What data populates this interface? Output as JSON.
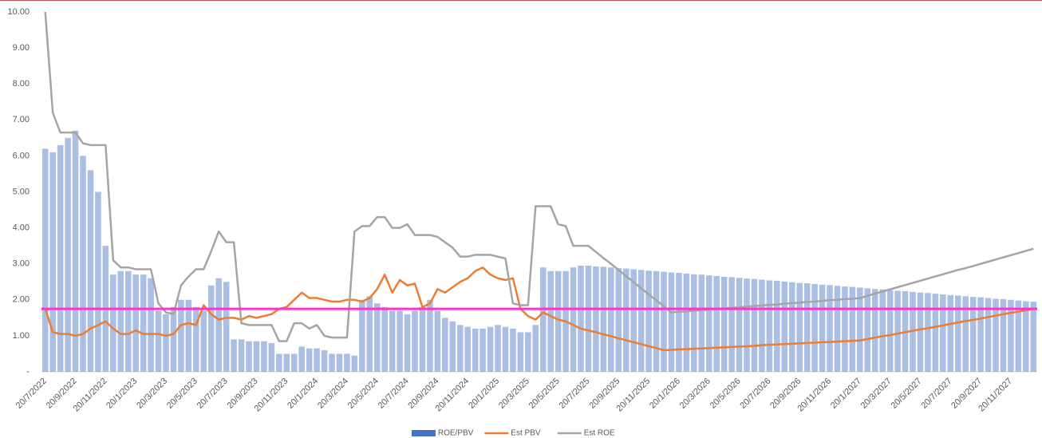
{
  "chart_data": {
    "type": "bar-line",
    "categories": [
      "20/7/2022",
      null,
      null,
      null,
      "20/9/2022",
      null,
      null,
      null,
      "20/11/2022",
      null,
      null,
      null,
      "20/1/2023",
      null,
      null,
      null,
      "20/3/2023",
      null,
      null,
      null,
      "20/5/2023",
      null,
      null,
      null,
      "20/7/2023",
      null,
      null,
      null,
      "20/9/2023",
      null,
      null,
      null,
      "20/11/2023",
      null,
      null,
      null,
      "20/1/2024",
      null,
      null,
      null,
      "20/3/2024",
      null,
      null,
      null,
      "20/5/2024",
      null,
      null,
      null,
      "20/7/2024",
      null,
      null,
      null,
      "20/9/2024",
      null,
      null,
      null,
      "20/11/2024",
      null,
      null,
      null,
      "20/1/2025",
      null,
      null,
      null,
      "20/3/2025",
      null,
      null,
      null,
      "20/5/2025",
      null,
      null,
      null,
      "20/7/2025",
      null,
      null,
      null,
      "20/9/2025",
      null,
      null,
      null,
      "20/11/2025",
      null,
      null,
      null,
      "20/1/2026",
      null,
      null,
      null,
      "20/3/2026",
      null,
      null,
      null,
      "20/5/2026",
      null,
      null,
      null,
      "20/7/2026",
      null,
      null,
      null,
      "20/9/2026",
      null,
      null,
      null,
      "20/11/2026",
      null,
      null,
      null,
      "20/1/2027",
      null,
      null,
      null,
      "20/3/2027",
      null,
      null,
      null,
      "20/5/2027",
      null,
      null,
      null,
      "20/7/2027",
      null,
      null,
      null,
      "20/9/2027",
      null,
      null,
      null,
      "20/11/2027",
      null,
      null,
      null
    ],
    "series": [
      {
        "name": "ROE/PBV",
        "kind": "bar",
        "color": "#4472c4",
        "values": [
          6.2,
          6.1,
          6.3,
          6.5,
          6.7,
          6.0,
          5.6,
          5.0,
          3.5,
          2.7,
          2.8,
          2.8,
          2.7,
          2.7,
          2.6,
          1.7,
          1.6,
          1.8,
          2.0,
          2.0,
          1.8,
          1.7,
          2.4,
          2.6,
          2.5,
          0.9,
          0.9,
          0.85,
          0.85,
          0.85,
          0.8,
          0.5,
          0.5,
          0.5,
          0.7,
          0.65,
          0.65,
          0.6,
          0.5,
          0.5,
          0.5,
          0.45,
          2.0,
          2.1,
          1.9,
          1.8,
          1.7,
          1.7,
          1.6,
          1.7,
          1.8,
          2.0,
          1.7,
          1.5,
          1.4,
          1.3,
          1.25,
          1.2,
          1.2,
          1.25,
          1.3,
          1.25,
          1.2,
          1.1,
          1.1,
          1.3,
          2.9,
          2.8,
          2.8,
          2.8,
          2.9,
          2.95,
          2.95,
          2.93,
          2.92,
          2.9,
          2.88,
          2.87,
          2.85,
          2.83,
          2.81,
          2.8,
          2.78,
          2.76,
          2.75,
          2.73,
          2.71,
          2.7,
          2.68,
          2.66,
          2.64,
          2.63,
          2.61,
          2.59,
          2.58,
          2.56,
          2.54,
          2.53,
          2.51,
          2.49,
          2.47,
          2.46,
          2.44,
          2.42,
          2.41,
          2.39,
          2.37,
          2.36,
          2.34,
          2.32,
          2.3,
          2.29,
          2.27,
          2.25,
          2.24,
          2.22,
          2.2,
          2.19,
          2.17,
          2.15,
          2.13,
          2.12,
          2.1,
          2.08,
          2.07,
          2.05,
          2.03,
          2.02,
          2.0,
          1.98,
          1.96,
          1.95
        ]
      },
      {
        "name": "Est PBV",
        "kind": "line",
        "color": "#ed7d31",
        "values": [
          1.75,
          1.1,
          1.05,
          1.05,
          1.0,
          1.05,
          1.2,
          1.3,
          1.4,
          1.2,
          1.05,
          1.05,
          1.15,
          1.05,
          1.05,
          1.05,
          1.0,
          1.05,
          1.3,
          1.35,
          1.3,
          1.85,
          1.6,
          1.45,
          1.5,
          1.5,
          1.45,
          1.55,
          1.5,
          1.55,
          1.6,
          1.75,
          1.8,
          2.0,
          2.2,
          2.05,
          2.05,
          2.0,
          1.95,
          1.95,
          2.0,
          2.0,
          1.95,
          2.05,
          2.3,
          2.7,
          2.2,
          2.55,
          2.4,
          2.45,
          1.8,
          1.9,
          2.3,
          2.2,
          2.35,
          2.5,
          2.6,
          2.8,
          2.9,
          2.7,
          2.6,
          2.55,
          2.6,
          1.75,
          1.55,
          1.45,
          1.65,
          1.55,
          1.45,
          1.4,
          1.3,
          1.2,
          1.15,
          1.1,
          1.04,
          0.99,
          0.93,
          0.88,
          0.82,
          0.77,
          0.71,
          0.66,
          0.6,
          0.61,
          0.62,
          0.63,
          0.64,
          0.65,
          0.66,
          0.67,
          0.68,
          0.69,
          0.7,
          0.71,
          0.72,
          0.74,
          0.75,
          0.76,
          0.77,
          0.78,
          0.79,
          0.8,
          0.81,
          0.82,
          0.83,
          0.84,
          0.85,
          0.86,
          0.87,
          0.91,
          0.95,
          0.99,
          1.02,
          1.06,
          1.1,
          1.14,
          1.18,
          1.21,
          1.25,
          1.29,
          1.33,
          1.37,
          1.41,
          1.44,
          1.48,
          1.52,
          1.56,
          1.6,
          1.64,
          1.67,
          1.71,
          1.75
        ]
      },
      {
        "name": "Est ROE",
        "kind": "line",
        "color": "#a5a5a5",
        "values": [
          10.0,
          7.2,
          6.65,
          6.65,
          6.65,
          6.35,
          6.3,
          6.3,
          6.3,
          3.1,
          2.9,
          2.9,
          2.85,
          2.85,
          2.85,
          1.9,
          1.65,
          1.6,
          2.4,
          2.65,
          2.85,
          2.85,
          3.35,
          3.9,
          3.6,
          3.6,
          1.35,
          1.3,
          1.3,
          1.3,
          1.3,
          0.85,
          0.85,
          1.35,
          1.35,
          1.2,
          1.3,
          1.0,
          0.95,
          0.95,
          0.95,
          3.9,
          4.05,
          4.05,
          4.3,
          4.3,
          4.0,
          4.0,
          4.1,
          3.8,
          3.8,
          3.8,
          3.75,
          3.6,
          3.45,
          3.2,
          3.2,
          3.25,
          3.25,
          3.25,
          3.2,
          3.15,
          1.9,
          1.85,
          1.85,
          4.6,
          4.6,
          4.6,
          4.1,
          4.05,
          3.5,
          3.5,
          3.5,
          3.33,
          3.16,
          3.0,
          2.83,
          2.66,
          2.49,
          2.32,
          2.15,
          1.99,
          1.82,
          1.65,
          1.67,
          1.68,
          1.7,
          1.71,
          1.73,
          1.75,
          1.76,
          1.78,
          1.79,
          1.81,
          1.83,
          1.84,
          1.86,
          1.87,
          1.89,
          1.91,
          1.92,
          1.94,
          1.95,
          1.97,
          1.99,
          2.0,
          2.02,
          2.03,
          2.05,
          2.11,
          2.17,
          2.23,
          2.29,
          2.35,
          2.41,
          2.47,
          2.53,
          2.59,
          2.65,
          2.71,
          2.77,
          2.83,
          2.88,
          2.94,
          3.0,
          3.06,
          3.12,
          3.18,
          3.24,
          3.3,
          3.36,
          3.42
        ]
      }
    ],
    "reference_line": {
      "value": 1.75,
      "color": "#ff33cc"
    },
    "ylim": [
      0,
      10
    ],
    "yticks": [
      {
        "value": 0,
        "label": "-"
      },
      {
        "value": 1,
        "label": "1.00"
      },
      {
        "value": 2,
        "label": "2.00"
      },
      {
        "value": 3,
        "label": "3.00"
      },
      {
        "value": 4,
        "label": "4.00"
      },
      {
        "value": 5,
        "label": "5.00"
      },
      {
        "value": 6,
        "label": "6.00"
      },
      {
        "value": 7,
        "label": "7.00"
      },
      {
        "value": 8,
        "label": "8.00"
      },
      {
        "value": 9,
        "label": "9.00"
      },
      {
        "value": 10,
        "label": "10.00"
      }
    ],
    "grid": false,
    "legend": "bottom"
  }
}
